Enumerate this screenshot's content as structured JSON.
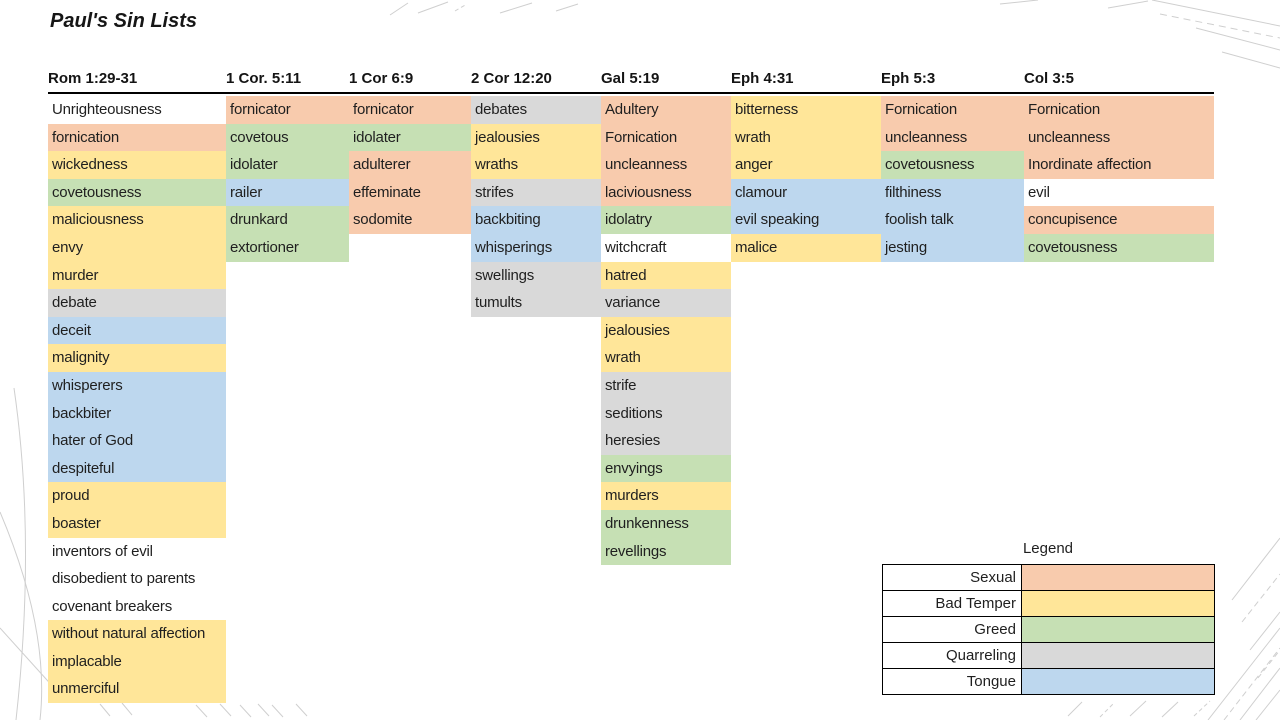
{
  "chart_data": {
    "type": "table",
    "title": "Paul's Sin Lists",
    "legend": {
      "title": "Legend",
      "position": "bottom-right",
      "items": [
        {
          "label": "Sexual",
          "category": "sexual"
        },
        {
          "label": "Bad Temper",
          "category": "bad_temper"
        },
        {
          "label": "Greed",
          "category": "greed"
        },
        {
          "label": "Quarreling",
          "category": "quarreling"
        },
        {
          "label": "Tongue",
          "category": "tongue"
        }
      ]
    },
    "category_colors": {
      "sexual": "#F8CBAD",
      "bad_temper": "#FFE699",
      "greed": "#C6E0B4",
      "quarreling": "#D9D9D9",
      "tongue": "#BDD7EE",
      "none": "#FFFFFF"
    },
    "columns": [
      {
        "header": "Rom 1:29-31",
        "items": [
          {
            "text": "Unrighteousness",
            "category": "none"
          },
          {
            "text": "fornication",
            "category": "sexual"
          },
          {
            "text": "wickedness",
            "category": "bad_temper"
          },
          {
            "text": "covetousness",
            "category": "greed"
          },
          {
            "text": "maliciousness",
            "category": "bad_temper"
          },
          {
            "text": "envy",
            "category": "bad_temper"
          },
          {
            "text": "murder",
            "category": "bad_temper"
          },
          {
            "text": "debate",
            "category": "quarreling"
          },
          {
            "text": "deceit",
            "category": "tongue"
          },
          {
            "text": "malignity",
            "category": "bad_temper"
          },
          {
            "text": "whisperers",
            "category": "tongue"
          },
          {
            "text": "backbiter",
            "category": "tongue"
          },
          {
            "text": "hater of God",
            "category": "tongue"
          },
          {
            "text": "despiteful",
            "category": "tongue"
          },
          {
            "text": "proud",
            "category": "bad_temper"
          },
          {
            "text": "boaster",
            "category": "bad_temper"
          },
          {
            "text": "inventors of evil",
            "category": "none"
          },
          {
            "text": "disobedient to parents",
            "category": "none"
          },
          {
            "text": "covenant breakers",
            "category": "none"
          },
          {
            "text": "without natural affection",
            "category": "bad_temper"
          },
          {
            "text": "implacable",
            "category": "bad_temper"
          },
          {
            "text": "unmerciful",
            "category": "bad_temper"
          }
        ]
      },
      {
        "header": "1 Cor. 5:11",
        "items": [
          {
            "text": "fornicator",
            "category": "sexual"
          },
          {
            "text": "covetous",
            "category": "greed"
          },
          {
            "text": "idolater",
            "category": "greed"
          },
          {
            "text": "railer",
            "category": "tongue"
          },
          {
            "text": "drunkard",
            "category": "greed"
          },
          {
            "text": "extortioner",
            "category": "greed"
          }
        ]
      },
      {
        "header": "1 Cor 6:9",
        "items": [
          {
            "text": "fornicator",
            "category": "sexual"
          },
          {
            "text": "idolater",
            "category": "greed"
          },
          {
            "text": "adulterer",
            "category": "sexual"
          },
          {
            "text": "effeminate",
            "category": "sexual"
          },
          {
            "text": "sodomite",
            "category": "sexual"
          }
        ]
      },
      {
        "header": "2 Cor 12:20",
        "items": [
          {
            "text": "debates",
            "category": "quarreling"
          },
          {
            "text": "jealousies",
            "category": "bad_temper"
          },
          {
            "text": "wraths",
            "category": "bad_temper"
          },
          {
            "text": "strifes",
            "category": "quarreling"
          },
          {
            "text": "backbiting",
            "category": "tongue"
          },
          {
            "text": "whisperings",
            "category": "tongue"
          },
          {
            "text": "swellings",
            "category": "quarreling"
          },
          {
            "text": "tumults",
            "category": "quarreling"
          }
        ]
      },
      {
        "header": "Gal 5:19",
        "items": [
          {
            "text": "Adultery",
            "category": "sexual"
          },
          {
            "text": "Fornication",
            "category": "sexual"
          },
          {
            "text": "uncleanness",
            "category": "sexual"
          },
          {
            "text": "laciviousness",
            "category": "sexual"
          },
          {
            "text": "idolatry",
            "category": "greed"
          },
          {
            "text": "witchcraft",
            "category": "none"
          },
          {
            "text": "hatred",
            "category": "bad_temper"
          },
          {
            "text": "variance",
            "category": "quarreling"
          },
          {
            "text": "jealousies",
            "category": "bad_temper"
          },
          {
            "text": "wrath",
            "category": "bad_temper"
          },
          {
            "text": "strife",
            "category": "quarreling"
          },
          {
            "text": "seditions",
            "category": "quarreling"
          },
          {
            "text": "heresies",
            "category": "quarreling"
          },
          {
            "text": "envyings",
            "category": "greed"
          },
          {
            "text": "murders",
            "category": "bad_temper"
          },
          {
            "text": "drunkenness",
            "category": "greed"
          },
          {
            "text": "revellings",
            "category": "greed"
          }
        ]
      },
      {
        "header": "Eph 4:31",
        "items": [
          {
            "text": "bitterness",
            "category": "bad_temper"
          },
          {
            "text": "wrath",
            "category": "bad_temper"
          },
          {
            "text": "anger",
            "category": "bad_temper"
          },
          {
            "text": "clamour",
            "category": "tongue"
          },
          {
            "text": "evil speaking",
            "category": "tongue"
          },
          {
            "text": "malice",
            "category": "bad_temper"
          }
        ]
      },
      {
        "header": "Eph 5:3",
        "items": [
          {
            "text": "Fornication",
            "category": "sexual"
          },
          {
            "text": "uncleanness",
            "category": "sexual"
          },
          {
            "text": "covetousness",
            "category": "greed"
          },
          {
            "text": "filthiness",
            "category": "tongue"
          },
          {
            "text": "foolish talk",
            "category": "tongue"
          },
          {
            "text": "jesting",
            "category": "tongue"
          }
        ]
      },
      {
        "header": "Col 3:5",
        "items": [
          {
            "text": "Fornication",
            "category": "sexual"
          },
          {
            "text": "uncleanness",
            "category": "sexual"
          },
          {
            "text": "Inordinate affection",
            "category": "sexual"
          },
          {
            "text": "evil",
            "category": "none"
          },
          {
            "text": "concupisence",
            "category": "sexual"
          },
          {
            "text": "covetousness",
            "category": "greed"
          }
        ]
      }
    ]
  }
}
